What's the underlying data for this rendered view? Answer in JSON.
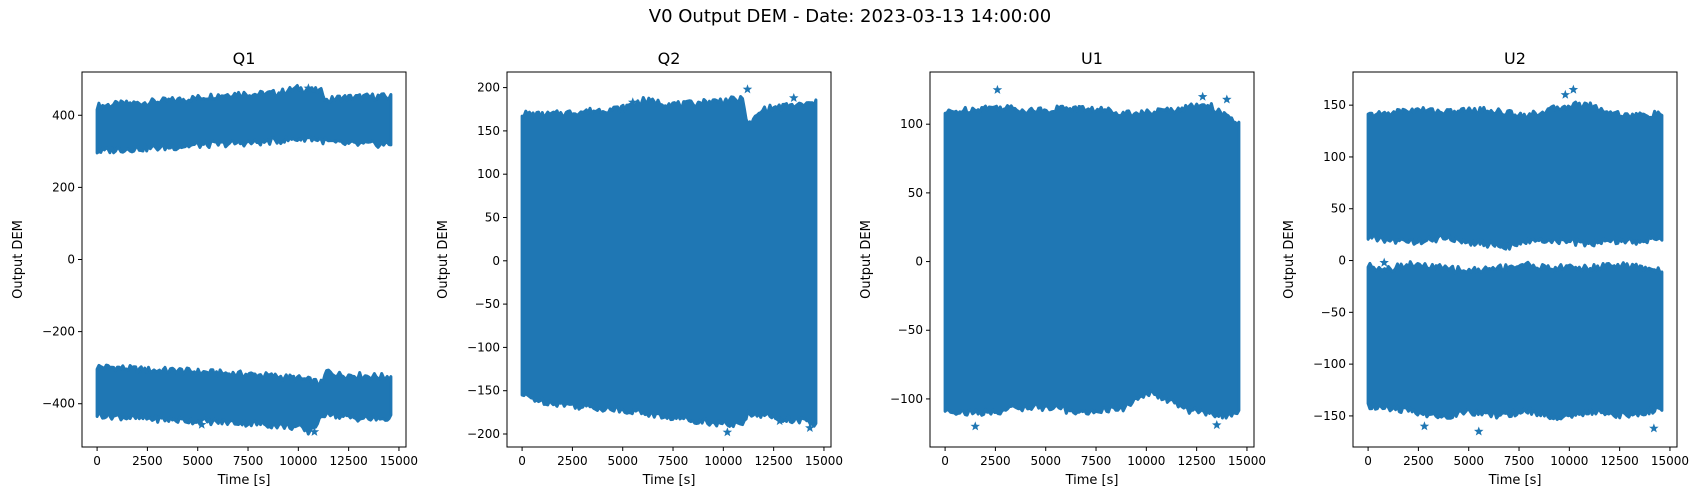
{
  "figure": {
    "title": "V0 Output DEM - Date: 2023-03-13 14:00:00"
  },
  "colors": {
    "series": "#1f77b4",
    "frame": "#000000",
    "background": "#ffffff"
  },
  "chart_data": [
    {
      "type": "scatter",
      "title": "Q1",
      "xlabel": "Time [s]",
      "ylabel": "Output DEM",
      "marker": "star",
      "xlim": [
        -750,
        15350
      ],
      "ylim": [
        -520,
        520
      ],
      "xticks": [
        0,
        2500,
        5000,
        7500,
        10000,
        12500,
        15000
      ],
      "yticks": [
        -400,
        -200,
        0,
        200,
        400
      ],
      "series": [
        {
          "x": [
            0,
            1000,
            2000,
            3000,
            4000,
            5000,
            6000,
            7000,
            8000,
            9000,
            10000,
            10500,
            11200,
            11400,
            12000,
            13000,
            14000,
            14600
          ],
          "upper_band_top": [
            425,
            430,
            433,
            438,
            442,
            448,
            455,
            460,
            458,
            462,
            475,
            470,
            465,
            440,
            448,
            450,
            452,
            450
          ],
          "upper_band_bottom": [
            300,
            305,
            308,
            310,
            313,
            318,
            320,
            323,
            325,
            330,
            335,
            338,
            330,
            328,
            322,
            320,
            320,
            320
          ],
          "lower_band_top": [
            -298,
            -300,
            -305,
            -308,
            -308,
            -312,
            -315,
            -318,
            -320,
            -325,
            -330,
            -335,
            -345,
            -310,
            -320,
            -322,
            -325,
            -325
          ],
          "lower_band_bottom": [
            -430,
            -435,
            -440,
            -442,
            -445,
            -448,
            -450,
            -452,
            -455,
            -460,
            -465,
            -478,
            -440,
            -420,
            -435,
            -440,
            -442,
            -440
          ],
          "outliers": [
            {
              "x": 10500,
              "y": 475
            },
            {
              "x": 10800,
              "y": -478
            },
            {
              "x": 5200,
              "y": -458
            }
          ]
        }
      ]
    },
    {
      "type": "scatter",
      "title": "Q2",
      "xlabel": "Time [s]",
      "ylabel": "Output DEM",
      "marker": "star",
      "xlim": [
        -750,
        15350
      ],
      "ylim": [
        -215,
        218
      ],
      "xticks": [
        0,
        2500,
        5000,
        7500,
        10000,
        12500,
        15000
      ],
      "yticks": [
        -200,
        -150,
        -100,
        -50,
        0,
        50,
        100,
        150,
        200
      ],
      "series": [
        {
          "x": [
            0,
            1000,
            2000,
            3000,
            4000,
            5000,
            6000,
            7000,
            8000,
            9000,
            10000,
            11000,
            11200,
            12000,
            13000,
            14000,
            14600
          ],
          "band_top": [
            170,
            168,
            170,
            172,
            174,
            176,
            185,
            182,
            180,
            183,
            185,
            186,
            155,
            175,
            178,
            180,
            182
          ],
          "band_bottom": [
            -155,
            -162,
            -165,
            -168,
            -170,
            -172,
            -175,
            -180,
            -182,
            -185,
            -188,
            -190,
            -175,
            -178,
            -182,
            -185,
            -190
          ],
          "outliers": [
            {
              "x": 11200,
              "y": 198
            },
            {
              "x": 13500,
              "y": 188
            },
            {
              "x": 10200,
              "y": -198
            },
            {
              "x": 12800,
              "y": -185
            },
            {
              "x": 14300,
              "y": -193
            },
            {
              "x": 5500,
              "y": 183
            }
          ]
        }
      ]
    },
    {
      "type": "scatter",
      "title": "U1",
      "xlabel": "Time [s]",
      "ylabel": "Output DEM",
      "marker": "star",
      "xlim": [
        -750,
        15350
      ],
      "ylim": [
        -135,
        138
      ],
      "xticks": [
        0,
        2500,
        5000,
        7500,
        10000,
        12500,
        15000
      ],
      "yticks": [
        -100,
        -50,
        0,
        50,
        100
      ],
      "series": [
        {
          "x": [
            0,
            1000,
            2000,
            3000,
            4000,
            5000,
            6000,
            7000,
            8000,
            9000,
            10000,
            11000,
            12000,
            13000,
            14000,
            14600
          ],
          "band_top": [
            108,
            110,
            112,
            112,
            110,
            110,
            112,
            111,
            110,
            108,
            108,
            110,
            112,
            115,
            105,
            100
          ],
          "band_bottom": [
            -108,
            -110,
            -110,
            -108,
            -106,
            -106,
            -108,
            -110,
            -108,
            -106,
            -95,
            -100,
            -108,
            -110,
            -112,
            -110
          ],
          "outliers": [
            {
              "x": 2600,
              "y": 125
            },
            {
              "x": 1500,
              "y": -120
            },
            {
              "x": 13500,
              "y": -119
            },
            {
              "x": 12800,
              "y": 120
            },
            {
              "x": 14000,
              "y": 118
            }
          ]
        }
      ]
    },
    {
      "type": "scatter",
      "title": "U2",
      "xlabel": "Time [s]",
      "ylabel": "Output DEM",
      "marker": "star",
      "xlim": [
        -750,
        15350
      ],
      "ylim": [
        -180,
        182
      ],
      "xticks": [
        0,
        2500,
        5000,
        7500,
        10000,
        12500,
        15000
      ],
      "yticks": [
        -150,
        -100,
        -50,
        0,
        50,
        100,
        150
      ],
      "series": [
        {
          "x": [
            0,
            1000,
            2000,
            3000,
            4000,
            5000,
            6000,
            7000,
            8000,
            9000,
            10000,
            11000,
            12000,
            13000,
            14000,
            14600
          ],
          "upper_band_top": [
            140,
            142,
            145,
            145,
            143,
            145,
            145,
            142,
            140,
            145,
            150,
            150,
            143,
            140,
            140,
            142
          ],
          "upper_band_bottom": [
            22,
            20,
            18,
            20,
            22,
            18,
            16,
            14,
            18,
            20,
            18,
            16,
            20,
            18,
            20,
            22
          ],
          "lower_band_top": [
            -5,
            -8,
            -4,
            -6,
            -8,
            -10,
            -8,
            -6,
            -4,
            -8,
            -6,
            -8,
            -4,
            -6,
            -8,
            -10
          ],
          "lower_band_bottom": [
            -140,
            -142,
            -145,
            -148,
            -150,
            -145,
            -150,
            -148,
            -145,
            -150,
            -152,
            -145,
            -148,
            -150,
            -145,
            -142
          ],
          "outliers": [
            {
              "x": 5500,
              "y": -165
            },
            {
              "x": 2800,
              "y": -160
            },
            {
              "x": 10200,
              "y": 165
            },
            {
              "x": 9800,
              "y": 160
            },
            {
              "x": 14200,
              "y": -162
            },
            {
              "x": 800,
              "y": -2
            }
          ]
        }
      ]
    }
  ]
}
